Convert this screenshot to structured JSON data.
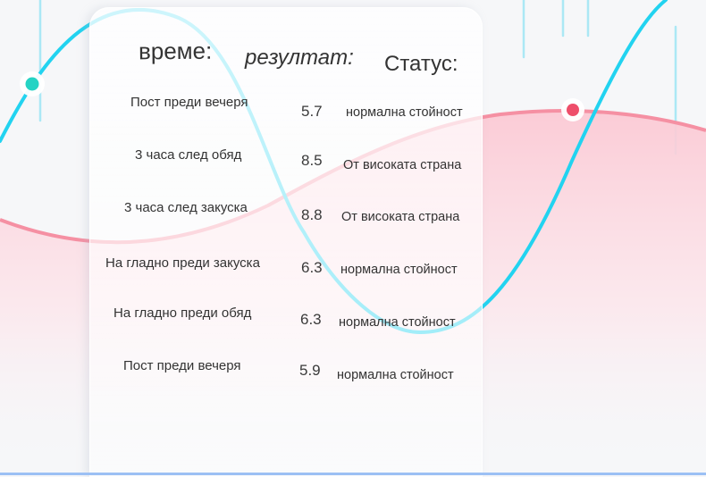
{
  "colors": {
    "blue_wave": "#22d3f0",
    "pink_wave": "#f590a3",
    "pink_fill": "#fbd3dc",
    "teal_dot": "#25d3c4",
    "red_dot": "#ee4e6a"
  },
  "headers": {
    "time": "време:",
    "result": "резултат:",
    "status": "Статус:"
  },
  "rows": [
    {
      "time": "Пост преди вечеря",
      "value": "5.7",
      "status": "нормална стойност"
    },
    {
      "time": "3 часа след обяд",
      "value": "8.5",
      "status": "От високата страна"
    },
    {
      "time": "3 часа след закуска",
      "value": "8.8",
      "status": "От високата страна"
    },
    {
      "time": "На гладно преди закуска",
      "value": "6.3",
      "status": "нормална стойност"
    },
    {
      "time": "На гладно преди обяд",
      "value": "6.3",
      "status": "нормална стойност"
    },
    {
      "time": "Пост преди вечеря",
      "value": "5.9",
      "status": "нормална стойност"
    }
  ]
}
